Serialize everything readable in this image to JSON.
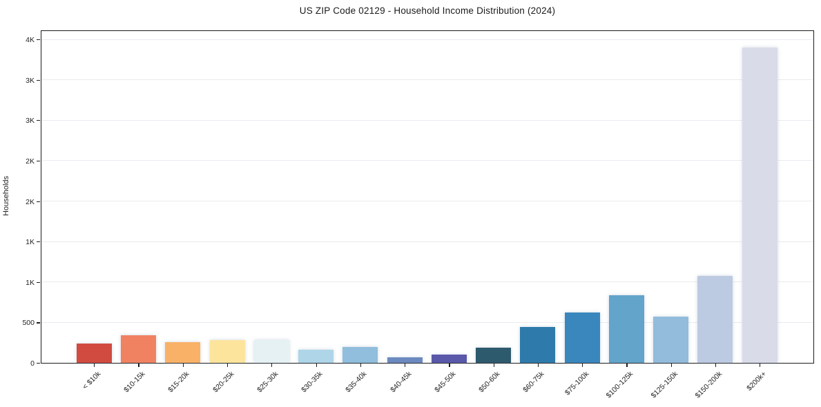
{
  "figure": {
    "background": "#ffffff"
  },
  "chart_data": {
    "type": "bar",
    "title": "US ZIP Code 02129 - Household Income Distribution (2024)",
    "xlabel": "",
    "ylabel": "Households",
    "ylim": [
      0,
      4000
    ],
    "ytick_step": 500,
    "ytick_labels": [
      "0",
      "500",
      "1K",
      "1K",
      "2K",
      "2K",
      "3K",
      "3K",
      "4K"
    ],
    "grid": true,
    "legend_position": "none",
    "categories": [
      "< $10k",
      "$10-15k",
      "$15-20k",
      "$20-25k",
      "$25-30k",
      "$30-35k",
      "$35-40k",
      "$40-45k",
      "$45-50k",
      "$50-60k",
      "$60-75k",
      "$75-100k",
      "$100-125k",
      "$125-150k",
      "$150-200k",
      "$200k+"
    ],
    "values": [
      235,
      340,
      255,
      285,
      280,
      160,
      200,
      65,
      100,
      190,
      445,
      620,
      835,
      570,
      1075,
      3900
    ],
    "bar_colors": [
      "#d14b41",
      "#f08262",
      "#f9b168",
      "#fde49d",
      "#e6f1f3",
      "#aed5e8",
      "#90bedc",
      "#6d8ac0",
      "#5a58a9",
      "#2e5a6e",
      "#2e7bab",
      "#3a87bd",
      "#62a4ca",
      "#93bcdc",
      "#bccbe2",
      "#dadbe9"
    ],
    "axis_color": "#1a1a1a",
    "grid_color": "#eaebf0",
    "text_color": "#1f1f1f"
  }
}
